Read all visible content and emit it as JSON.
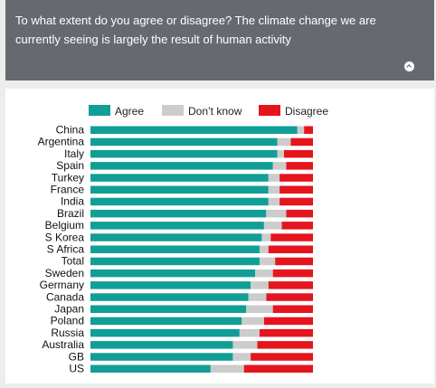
{
  "question": {
    "text": "To what extent do you agree or disagree? The climate change we are currently seeing is largely the result of human activity",
    "toggle_icon": "chevron-up-icon"
  },
  "colors": {
    "agree": "#119e96",
    "dont_know": "#cccccc",
    "disagree": "#e5151d",
    "header_bg": "#666a70"
  },
  "chart_data": {
    "type": "bar",
    "orientation": "horizontal",
    "stacked": true,
    "legend_position": "top",
    "grid": false,
    "xlim": [
      0,
      100
    ],
    "categories": [
      "China",
      "Argentina",
      "Italy",
      "Spain",
      "Turkey",
      "France",
      "India",
      "Brazil",
      "Belgium",
      "S Korea",
      "S Africa",
      "Total",
      "Sweden",
      "Germany",
      "Canada",
      "Japan",
      "Poland",
      "Russia",
      "Australia",
      "GB",
      "US"
    ],
    "series": [
      {
        "name": "Agree",
        "key": "agree",
        "values": [
          93,
          84,
          84,
          82,
          80,
          80,
          80,
          79,
          78,
          77,
          76,
          76,
          74,
          72,
          71,
          70,
          68,
          67,
          64,
          64,
          54
        ]
      },
      {
        "name": "Don’t know",
        "key": "dont_know",
        "values": [
          3,
          6,
          3,
          6,
          5,
          5,
          5,
          9,
          8,
          4,
          4,
          7,
          8,
          8,
          8,
          12,
          10,
          9,
          11,
          8,
          15
        ]
      },
      {
        "name": "Disagree",
        "key": "disagree",
        "values": [
          4,
          10,
          13,
          12,
          15,
          15,
          15,
          12,
          14,
          19,
          20,
          17,
          18,
          20,
          21,
          18,
          22,
          24,
          25,
          28,
          31
        ]
      }
    ]
  }
}
